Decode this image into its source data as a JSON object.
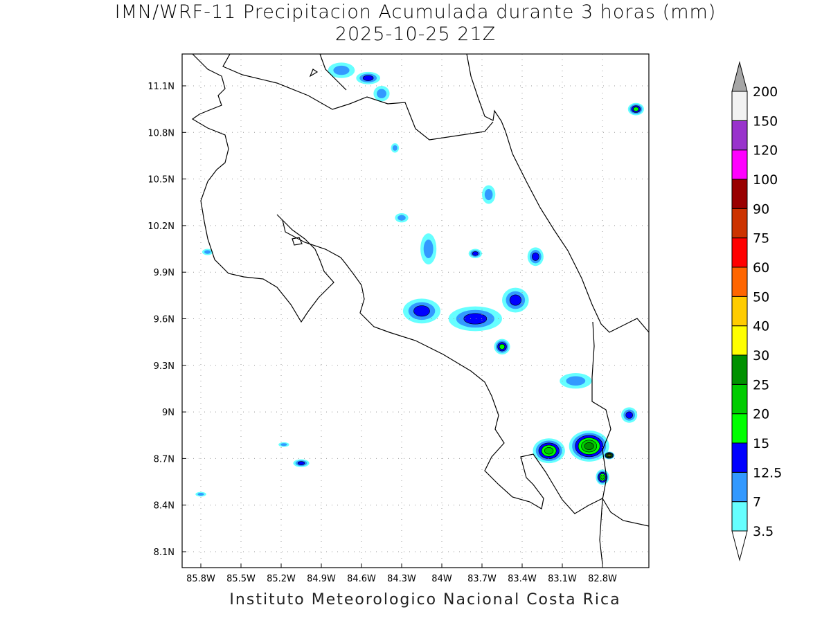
{
  "title": "IMN/WRF-11 Precipitacion Acumulada durante 3 horas (mm)",
  "subtitle": "2025-10-25 21Z",
  "footer": "Instituto Meteorologico Nacional Costa Rica",
  "chart_data": {
    "type": "map",
    "variable": "3-hour accumulated precipitation (mm)",
    "lon_ticks": [
      "85.8W",
      "85.5W",
      "85.2W",
      "84.9W",
      "84.6W",
      "84.3W",
      "84W",
      "83.7W",
      "83.4W",
      "83.1W",
      "82.8W"
    ],
    "lon_values": [
      -85.8,
      -85.5,
      -85.2,
      -84.9,
      -84.6,
      -84.3,
      -84.0,
      -83.7,
      -83.4,
      -83.1,
      -82.8
    ],
    "lat_ticks": [
      "11.1N",
      "10.8N",
      "10.5N",
      "10.2N",
      "9.9N",
      "9.6N",
      "9.3N",
      "9N",
      "8.7N",
      "8.4N",
      "8.1N"
    ],
    "lat_values": [
      11.1,
      10.8,
      10.5,
      10.2,
      9.9,
      9.6,
      9.3,
      9.0,
      8.7,
      8.4,
      8.1
    ],
    "lon_range": [
      -85.94,
      -82.46
    ],
    "lat_range": [
      8.01,
      11.3
    ],
    "grid": true,
    "legend": {
      "placement": "right",
      "levels": [
        "3.5",
        "7",
        "12.5",
        "15",
        "20",
        "25",
        "30",
        "40",
        "50",
        "60",
        "75",
        "90",
        "100",
        "120",
        "150",
        "200"
      ],
      "colors": [
        "#66ffff",
        "#3399ff",
        "#0000ff",
        "#00ff00",
        "#00cc00",
        "#009100",
        "#ffff00",
        "#ffcc00",
        "#ff6600",
        "#ff0000",
        "#cc3300",
        "#990000",
        "#ff00ff",
        "#9933cc",
        "#f2f2f2"
      ],
      "over_color": "#a6a6a6",
      "under_color": "#ffffff"
    },
    "precip_cells": [
      {
        "lon": -84.75,
        "lat": 11.2,
        "level": 1,
        "rx": 0.1,
        "ry": 0.05
      },
      {
        "lon": -84.55,
        "lat": 11.15,
        "level": 2,
        "rx": 0.09,
        "ry": 0.04
      },
      {
        "lon": -82.55,
        "lat": 10.95,
        "level": 3,
        "rx": 0.06,
        "ry": 0.04
      },
      {
        "lon": -85.75,
        "lat": 10.03,
        "level": 1,
        "rx": 0.04,
        "ry": 0.02
      },
      {
        "lon": -84.15,
        "lat": 9.65,
        "level": 2,
        "rx": 0.14,
        "ry": 0.08
      },
      {
        "lon": -83.75,
        "lat": 9.6,
        "level": 2,
        "rx": 0.2,
        "ry": 0.08
      },
      {
        "lon": -83.45,
        "lat": 9.72,
        "level": 2,
        "rx": 0.1,
        "ry": 0.08
      },
      {
        "lon": -83.55,
        "lat": 9.42,
        "level": 3,
        "rx": 0.06,
        "ry": 0.05
      },
      {
        "lon": -84.1,
        "lat": 10.05,
        "level": 1,
        "rx": 0.06,
        "ry": 0.1
      },
      {
        "lon": -83.75,
        "lat": 10.02,
        "level": 2,
        "rx": 0.05,
        "ry": 0.03
      },
      {
        "lon": -83.3,
        "lat": 10.0,
        "level": 2,
        "rx": 0.06,
        "ry": 0.06
      },
      {
        "lon": -82.9,
        "lat": 8.78,
        "level": 5,
        "rx": 0.15,
        "ry": 0.1
      },
      {
        "lon": -82.75,
        "lat": 8.72,
        "level": 7,
        "rx": 0.04,
        "ry": 0.025
      },
      {
        "lon": -83.2,
        "lat": 8.75,
        "level": 4,
        "rx": 0.12,
        "ry": 0.08
      },
      {
        "lon": -82.8,
        "lat": 8.58,
        "level": 4,
        "rx": 0.05,
        "ry": 0.05
      },
      {
        "lon": -82.6,
        "lat": 8.98,
        "level": 2,
        "rx": 0.06,
        "ry": 0.05
      },
      {
        "lon": -85.18,
        "lat": 8.79,
        "level": 1,
        "rx": 0.04,
        "ry": 0.015
      },
      {
        "lon": -85.05,
        "lat": 8.67,
        "level": 2,
        "rx": 0.06,
        "ry": 0.025
      },
      {
        "lon": -85.8,
        "lat": 8.47,
        "level": 1,
        "rx": 0.04,
        "ry": 0.015
      },
      {
        "lon": -83.0,
        "lat": 9.2,
        "level": 1,
        "rx": 0.12,
        "ry": 0.05
      },
      {
        "lon": -84.3,
        "lat": 10.25,
        "level": 1,
        "rx": 0.05,
        "ry": 0.03
      },
      {
        "lon": -83.65,
        "lat": 10.4,
        "level": 1,
        "rx": 0.05,
        "ry": 0.06
      },
      {
        "lon": -84.45,
        "lat": 11.05,
        "level": 1,
        "rx": 0.06,
        "ry": 0.05
      },
      {
        "lon": -84.35,
        "lat": 10.7,
        "level": 1,
        "rx": 0.03,
        "ry": 0.03
      }
    ]
  }
}
